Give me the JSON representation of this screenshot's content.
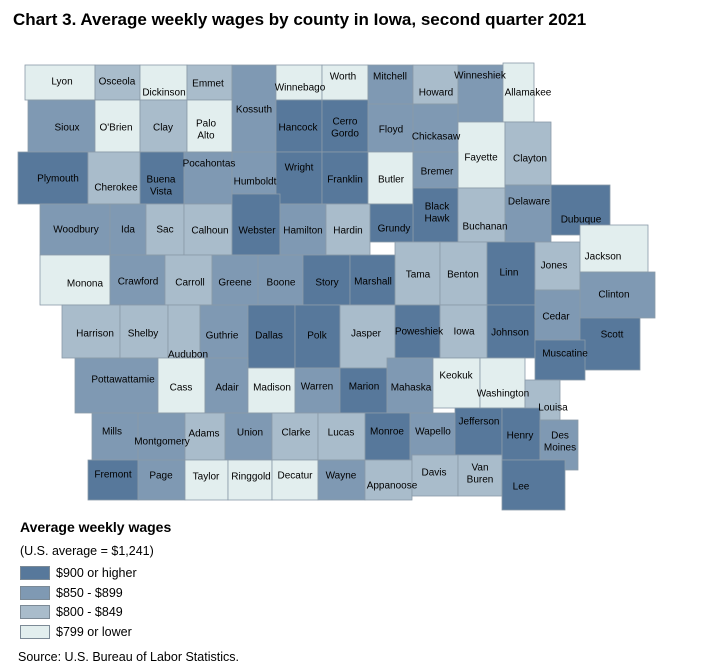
{
  "title": "Chart 3. Average weekly wages by county in Iowa, second quarter 2021",
  "legend": {
    "title": "Average weekly wages",
    "note": "(U.S. average = $1,241)",
    "classes": [
      {
        "label": "$900 or higher",
        "color": "#57789b"
      },
      {
        "label": "$850 - $899",
        "color": "#7f99b3"
      },
      {
        "label": "$800 - $849",
        "color": "#a9bccb"
      },
      {
        "label": "$799 or lower",
        "color": "#e2eeee"
      }
    ]
  },
  "source": "Source: U.S. Bureau of Labor Statistics.",
  "chart_data": {
    "type": "choropleth",
    "title": "Chart 3. Average weekly wages by county in Iowa, second quarter 2021",
    "region": "Iowa",
    "counties": [
      {
        "name": "Lyon",
        "wage_class": 3
      },
      {
        "name": "Osceola",
        "wage_class": 2
      },
      {
        "name": "Dickinson",
        "wage_class": 3
      },
      {
        "name": "Emmet",
        "wage_class": 2
      },
      {
        "name": "Kossuth",
        "wage_class": 1
      },
      {
        "name": "Winnebago",
        "wage_class": 3
      },
      {
        "name": "Worth",
        "wage_class": 3
      },
      {
        "name": "Mitchell",
        "wage_class": 1
      },
      {
        "name": "Howard",
        "wage_class": 2
      },
      {
        "name": "Winneshiek",
        "wage_class": 1
      },
      {
        "name": "Allamakee",
        "wage_class": 3
      },
      {
        "name": "Sioux",
        "wage_class": 1
      },
      {
        "name": "O'Brien",
        "wage_class": 3
      },
      {
        "name": "Clay",
        "wage_class": 2
      },
      {
        "name": "Palo Alto",
        "wage_class": 3
      },
      {
        "name": "Hancock",
        "wage_class": 0
      },
      {
        "name": "Cerro Gordo",
        "wage_class": 0
      },
      {
        "name": "Floyd",
        "wage_class": 1
      },
      {
        "name": "Chickasaw",
        "wage_class": 1
      },
      {
        "name": "Fayette",
        "wage_class": 3
      },
      {
        "name": "Clayton",
        "wage_class": 2
      },
      {
        "name": "Plymouth",
        "wage_class": 0
      },
      {
        "name": "Cherokee",
        "wage_class": 2
      },
      {
        "name": "Buena Vista",
        "wage_class": 0
      },
      {
        "name": "Pocahontas",
        "wage_class": 1
      },
      {
        "name": "Humboldt",
        "wage_class": 1
      },
      {
        "name": "Wright",
        "wage_class": 0
      },
      {
        "name": "Franklin",
        "wage_class": 0
      },
      {
        "name": "Butler",
        "wage_class": 3
      },
      {
        "name": "Bremer",
        "wage_class": 1
      },
      {
        "name": "Black Hawk",
        "wage_class": 0
      },
      {
        "name": "Buchanan",
        "wage_class": 2
      },
      {
        "name": "Delaware",
        "wage_class": 1
      },
      {
        "name": "Dubuque",
        "wage_class": 0
      },
      {
        "name": "Woodbury",
        "wage_class": 1
      },
      {
        "name": "Ida",
        "wage_class": 1
      },
      {
        "name": "Sac",
        "wage_class": 2
      },
      {
        "name": "Calhoun",
        "wage_class": 2
      },
      {
        "name": "Webster",
        "wage_class": 0
      },
      {
        "name": "Hamilton",
        "wage_class": 1
      },
      {
        "name": "Hardin",
        "wage_class": 2
      },
      {
        "name": "Grundy",
        "wage_class": 0
      },
      {
        "name": "Tama",
        "wage_class": 2
      },
      {
        "name": "Benton",
        "wage_class": 2
      },
      {
        "name": "Linn",
        "wage_class": 0
      },
      {
        "name": "Jones",
        "wage_class": 2
      },
      {
        "name": "Jackson",
        "wage_class": 3
      },
      {
        "name": "Monona",
        "wage_class": 3
      },
      {
        "name": "Crawford",
        "wage_class": 1
      },
      {
        "name": "Carroll",
        "wage_class": 2
      },
      {
        "name": "Greene",
        "wage_class": 1
      },
      {
        "name": "Boone",
        "wage_class": 1
      },
      {
        "name": "Story",
        "wage_class": 0
      },
      {
        "name": "Marshall",
        "wage_class": 0
      },
      {
        "name": "Clinton",
        "wage_class": 1
      },
      {
        "name": "Harrison",
        "wage_class": 2
      },
      {
        "name": "Shelby",
        "wage_class": 2
      },
      {
        "name": "Audubon",
        "wage_class": 2
      },
      {
        "name": "Guthrie",
        "wage_class": 1
      },
      {
        "name": "Dallas",
        "wage_class": 0
      },
      {
        "name": "Polk",
        "wage_class": 0
      },
      {
        "name": "Jasper",
        "wage_class": 2
      },
      {
        "name": "Poweshiek",
        "wage_class": 0
      },
      {
        "name": "Iowa",
        "wage_class": 2
      },
      {
        "name": "Johnson",
        "wage_class": 0
      },
      {
        "name": "Cedar",
        "wage_class": 1
      },
      {
        "name": "Scott",
        "wage_class": 0
      },
      {
        "name": "Muscatine",
        "wage_class": 0
      },
      {
        "name": "Pottawattamie",
        "wage_class": 1
      },
      {
        "name": "Cass",
        "wage_class": 3
      },
      {
        "name": "Adair",
        "wage_class": 1
      },
      {
        "name": "Madison",
        "wage_class": 3
      },
      {
        "name": "Warren",
        "wage_class": 1
      },
      {
        "name": "Marion",
        "wage_class": 0
      },
      {
        "name": "Mahaska",
        "wage_class": 1
      },
      {
        "name": "Keokuk",
        "wage_class": 3
      },
      {
        "name": "Washington",
        "wage_class": 3
      },
      {
        "name": "Louisa",
        "wage_class": 2
      },
      {
        "name": "Mills",
        "wage_class": 1
      },
      {
        "name": "Montgomery",
        "wage_class": 1
      },
      {
        "name": "Adams",
        "wage_class": 2
      },
      {
        "name": "Union",
        "wage_class": 1
      },
      {
        "name": "Clarke",
        "wage_class": 2
      },
      {
        "name": "Lucas",
        "wage_class": 2
      },
      {
        "name": "Monroe",
        "wage_class": 0
      },
      {
        "name": "Wapello",
        "wage_class": 1
      },
      {
        "name": "Jefferson",
        "wage_class": 0
      },
      {
        "name": "Henry",
        "wage_class": 0
      },
      {
        "name": "Des Moines",
        "wage_class": 1
      },
      {
        "name": "Fremont",
        "wage_class": 0
      },
      {
        "name": "Page",
        "wage_class": 1
      },
      {
        "name": "Taylor",
        "wage_class": 3
      },
      {
        "name": "Ringgold",
        "wage_class": 3
      },
      {
        "name": "Decatur",
        "wage_class": 3
      },
      {
        "name": "Wayne",
        "wage_class": 1
      },
      {
        "name": "Appanoose",
        "wage_class": 2
      },
      {
        "name": "Davis",
        "wage_class": 2
      },
      {
        "name": "Van Buren",
        "wage_class": 2
      },
      {
        "name": "Lee",
        "wage_class": 0
      }
    ]
  }
}
